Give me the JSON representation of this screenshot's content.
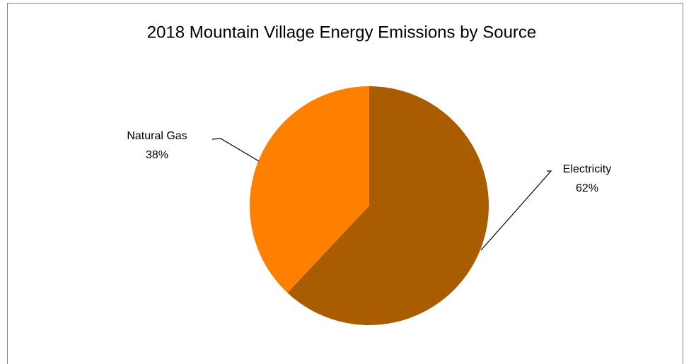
{
  "chart_data": {
    "type": "pie",
    "title": "2018 Mountain Village Energy Emissions by Source",
    "categories": [
      "Electricity",
      "Natural Gas"
    ],
    "values": [
      62,
      38
    ],
    "value_labels": [
      "62%",
      "38%"
    ],
    "colors": [
      "#a95c00",
      "#ff8000"
    ]
  }
}
